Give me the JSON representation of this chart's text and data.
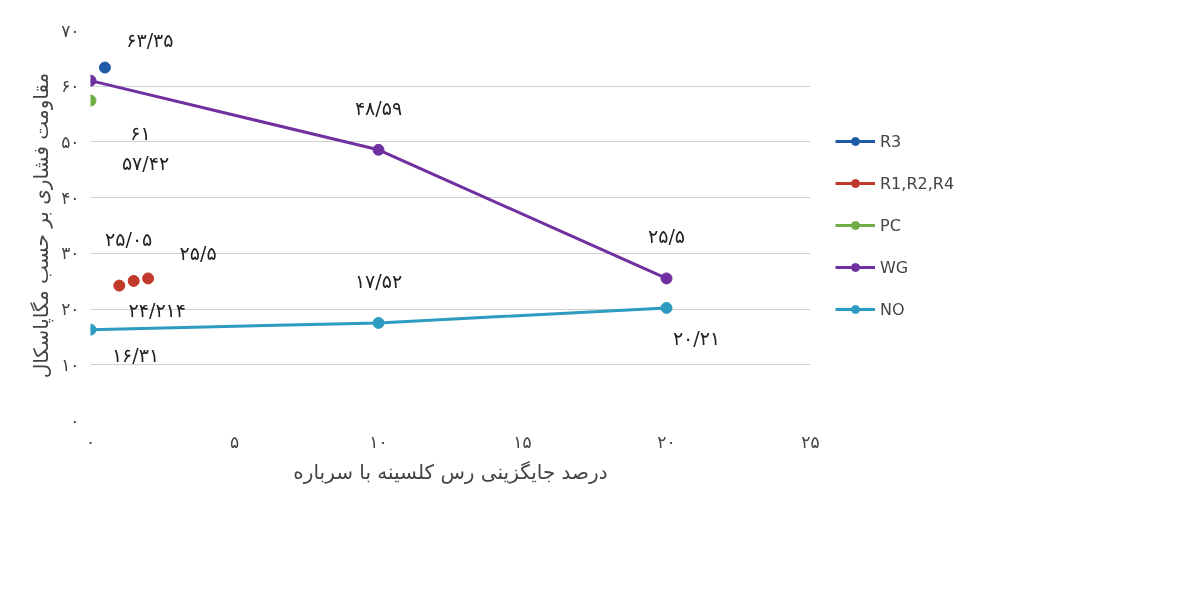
{
  "chart_data": {
    "type": "line",
    "xlabel": "درصد جایگزینی رس کلسینه با سرباره",
    "ylabel": "مقاومت فشاری بر حسب مگاپاسکال",
    "xlim": [
      0,
      25
    ],
    "xticks": [
      {
        "value": 0,
        "label": "۰"
      },
      {
        "value": 5,
        "label": "۵"
      },
      {
        "value": 10,
        "label": "۱۰"
      },
      {
        "value": 15,
        "label": "۱۵"
      },
      {
        "value": 20,
        "label": "۲۰"
      },
      {
        "value": 25,
        "label": "۲۵"
      }
    ],
    "ylim": [
      0,
      70
    ],
    "yticks": [
      {
        "value": 0,
        "label": "۰"
      },
      {
        "value": 10,
        "label": "۱۰"
      },
      {
        "value": 20,
        "label": "۲۰"
      },
      {
        "value": 30,
        "label": "۳۰"
      },
      {
        "value": 40,
        "label": "۴۰"
      },
      {
        "value": 50,
        "label": "۵۰"
      },
      {
        "value": 60,
        "label": "۶۰"
      },
      {
        "value": 70,
        "label": "۷۰"
      }
    ],
    "grid": "y",
    "legend": "right",
    "marker": "circle",
    "line_style": "solid",
    "series": [
      {
        "name": "R3",
        "type": "scatter",
        "color": "#1f5aa6",
        "x": [
          0.5
        ],
        "values": [
          63.35
        ],
        "value_labels": [
          "۶۳/۳۵"
        ]
      },
      {
        "name": "R1,R2,R4",
        "type": "scatter",
        "color": "#c0392b",
        "x": [
          1,
          1.5,
          2
        ],
        "values": [
          24.214,
          25.05,
          25.5
        ],
        "value_labels": [
          "۲۴/۲۱۴",
          "۲۵/۰۵",
          "۲۵/۵"
        ]
      },
      {
        "name": "PC",
        "type": "scatter",
        "color": "#70ad47",
        "x": [
          0
        ],
        "values": [
          57.42
        ],
        "value_labels": [
          "۵۷/۴۲"
        ]
      },
      {
        "name": "WG",
        "color": "#7030a0",
        "x": [
          0,
          10,
          20
        ],
        "values": [
          61,
          48.59,
          25.5
        ],
        "value_labels": [
          "۶۱",
          "۴۸/۵۹",
          "۲۵/۵"
        ]
      },
      {
        "name": "NO",
        "color": "#2e9bc0",
        "x": [
          0,
          10,
          20
        ],
        "values": [
          16.31,
          17.52,
          20.21
        ],
        "value_labels": [
          "۱۶/۳۱",
          "۱۷/۵۲",
          "۲۰/۲۱"
        ]
      }
    ]
  }
}
